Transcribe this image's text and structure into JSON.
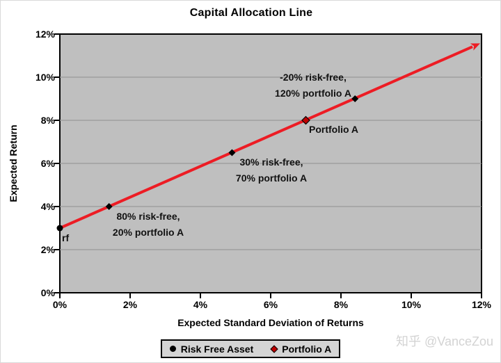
{
  "title": "Capital Allocation Line",
  "watermark": "知乎 @VanceZou",
  "colors": {
    "plot_bg": "#bfbfbf",
    "gridline": "#999999",
    "cal_line": "#ed1c24",
    "marker_black": "#000000",
    "marker_red": "#c00000",
    "legend_bg": "#d4d4d4",
    "axis": "#000000",
    "watermark": "#d3d3d3"
  },
  "legend": {
    "items": [
      {
        "label": "Risk Free Asset",
        "marker": "circle",
        "color": "#000000"
      },
      {
        "label": "Portfolio A",
        "marker": "diamond",
        "color": "#c00000"
      }
    ]
  },
  "chart_data": {
    "type": "line",
    "title": "Capital Allocation Line",
    "xlabel": "Expected Standard Deviation of Returns",
    "ylabel": "Expected Return",
    "xlim": [
      0,
      12
    ],
    "ylim": [
      0,
      12
    ],
    "x_tick_values": [
      0,
      2,
      4,
      6,
      8,
      10,
      12
    ],
    "x_tick_labels": [
      "0%",
      "2%",
      "4%",
      "6%",
      "8%",
      "10%",
      "12%"
    ],
    "y_tick_values": [
      0,
      2,
      4,
      6,
      8,
      10,
      12
    ],
    "y_tick_labels": [
      "0%",
      "2%",
      "4%",
      "6%",
      "8%",
      "10%",
      "12%"
    ],
    "grid": "horizontal",
    "legend_position": "bottom",
    "line": {
      "x_start": 0,
      "y_start": 3,
      "x_end": 12,
      "y_end": 11.57,
      "arrow": true,
      "color": "#ed1c24"
    },
    "points": [
      {
        "x": 0,
        "y": 3,
        "marker": "circle",
        "series": "Risk Free Asset"
      },
      {
        "x": 1.4,
        "y": 4,
        "marker": "diamond",
        "series": "combination"
      },
      {
        "x": 4.9,
        "y": 6.5,
        "marker": "diamond",
        "series": "combination"
      },
      {
        "x": 7,
        "y": 8,
        "marker": "diamond-red",
        "series": "Portfolio A"
      },
      {
        "x": 8.4,
        "y": 9,
        "marker": "diamond",
        "series": "combination"
      }
    ],
    "annotations": [
      {
        "x": 0,
        "y": 3,
        "lines": [
          "rf"
        ]
      },
      {
        "x": 1.4,
        "y": 4,
        "lines": [
          "80% risk-free,",
          "20% portfolio A"
        ]
      },
      {
        "x": 4.9,
        "y": 6.5,
        "lines": [
          "30% risk-free,",
          "70% portfolio A"
        ]
      },
      {
        "x": 7,
        "y": 8,
        "lines": [
          "Portfolio A"
        ]
      },
      {
        "x": 8.4,
        "y": 9,
        "lines": [
          "-20% risk-free,",
          "120% portfolio A"
        ]
      }
    ]
  }
}
